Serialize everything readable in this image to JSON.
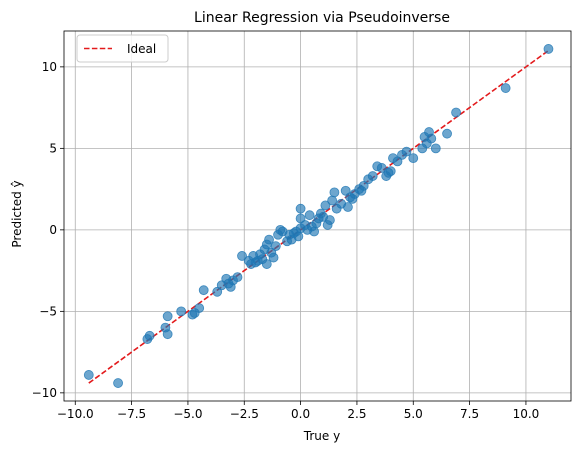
{
  "chart_data": {
    "type": "scatter",
    "title": "Linear Regression via Pseudoinverse",
    "xlabel": "True y",
    "ylabel": "Predicted ŷ",
    "xlim": [
      -10.5,
      12.0
    ],
    "ylim": [
      -10.5,
      12.2
    ],
    "xticks": [
      -10.0,
      -7.5,
      -5.0,
      -2.5,
      0.0,
      2.5,
      5.0,
      7.5,
      10.0
    ],
    "xtick_labels": [
      "−10.0",
      "−7.5",
      "−5.0",
      "−2.5",
      "0.0",
      "2.5",
      "5.0",
      "7.5",
      "10.0"
    ],
    "yticks": [
      -10,
      -5,
      0,
      5,
      10
    ],
    "ytick_labels": [
      "−10",
      "−5",
      "0",
      "5",
      "10"
    ],
    "grid": true,
    "legend_position": "top-left",
    "ideal_line": {
      "name": "Ideal",
      "x": [
        -9.4,
        11.0
      ],
      "y": [
        -9.4,
        11.0
      ],
      "color": "#e31a1c",
      "style": "dashed"
    },
    "scatter_color": "#1f77b4",
    "points": [
      [
        -9.4,
        -8.9
      ],
      [
        -8.1,
        -9.4
      ],
      [
        -6.8,
        -6.7
      ],
      [
        -6.7,
        -6.5
      ],
      [
        -6.0,
        -6.0
      ],
      [
        -5.9,
        -5.3
      ],
      [
        -5.9,
        -6.4
      ],
      [
        -5.3,
        -5.0
      ],
      [
        -4.8,
        -5.2
      ],
      [
        -4.7,
        -5.1
      ],
      [
        -4.5,
        -4.8
      ],
      [
        -4.3,
        -3.7
      ],
      [
        -3.7,
        -3.8
      ],
      [
        -3.5,
        -3.4
      ],
      [
        -3.3,
        -3.0
      ],
      [
        -3.2,
        -3.3
      ],
      [
        -3.1,
        -3.5
      ],
      [
        -3.0,
        -3.1
      ],
      [
        -2.8,
        -2.9
      ],
      [
        -2.6,
        -1.6
      ],
      [
        -2.3,
        -1.9
      ],
      [
        -2.2,
        -2.1
      ],
      [
        -2.1,
        -1.6
      ],
      [
        -2.0,
        -2.0
      ],
      [
        -1.9,
        -1.9
      ],
      [
        -1.8,
        -1.5
      ],
      [
        -1.7,
        -1.8
      ],
      [
        -1.6,
        -1.2
      ],
      [
        -1.5,
        -2.1
      ],
      [
        -1.5,
        -0.9
      ],
      [
        -1.4,
        -0.6
      ],
      [
        -1.3,
        -1.4
      ],
      [
        -1.2,
        -1.7
      ],
      [
        -1.1,
        -1.0
      ],
      [
        -1.0,
        -0.3
      ],
      [
        -0.9,
        0.0
      ],
      [
        -0.8,
        -0.1
      ],
      [
        -0.6,
        -0.7
      ],
      [
        -0.5,
        -0.3
      ],
      [
        -0.4,
        -0.6
      ],
      [
        -0.3,
        -0.2
      ],
      [
        -0.2,
        -0.1
      ],
      [
        -0.1,
        -0.4
      ],
      [
        0.0,
        0.1
      ],
      [
        0.0,
        0.7
      ],
      [
        0.0,
        1.3
      ],
      [
        0.2,
        0.3
      ],
      [
        0.3,
        0.0
      ],
      [
        0.4,
        0.9
      ],
      [
        0.5,
        0.2
      ],
      [
        0.6,
        -0.1
      ],
      [
        0.7,
        0.4
      ],
      [
        0.8,
        0.7
      ],
      [
        0.9,
        1.0
      ],
      [
        1.0,
        0.8
      ],
      [
        1.1,
        1.5
      ],
      [
        1.2,
        0.3
      ],
      [
        1.3,
        0.6
      ],
      [
        1.4,
        1.8
      ],
      [
        1.5,
        2.3
      ],
      [
        1.6,
        1.3
      ],
      [
        1.8,
        1.6
      ],
      [
        2.0,
        2.4
      ],
      [
        2.1,
        1.4
      ],
      [
        2.2,
        2.0
      ],
      [
        2.3,
        1.9
      ],
      [
        2.4,
        2.2
      ],
      [
        2.6,
        2.5
      ],
      [
        2.7,
        2.4
      ],
      [
        2.8,
        2.7
      ],
      [
        3.0,
        3.1
      ],
      [
        3.2,
        3.3
      ],
      [
        3.4,
        3.9
      ],
      [
        3.6,
        3.8
      ],
      [
        3.8,
        3.3
      ],
      [
        3.9,
        3.5
      ],
      [
        4.0,
        3.6
      ],
      [
        4.1,
        4.4
      ],
      [
        4.3,
        4.2
      ],
      [
        4.5,
        4.6
      ],
      [
        4.7,
        4.8
      ],
      [
        5.0,
        4.4
      ],
      [
        5.4,
        5.0
      ],
      [
        5.5,
        5.7
      ],
      [
        5.6,
        5.3
      ],
      [
        5.7,
        6.0
      ],
      [
        5.8,
        5.6
      ],
      [
        6.0,
        5.0
      ],
      [
        6.5,
        5.9
      ],
      [
        6.9,
        7.2
      ],
      [
        9.1,
        8.7
      ],
      [
        11.0,
        11.1
      ]
    ]
  }
}
